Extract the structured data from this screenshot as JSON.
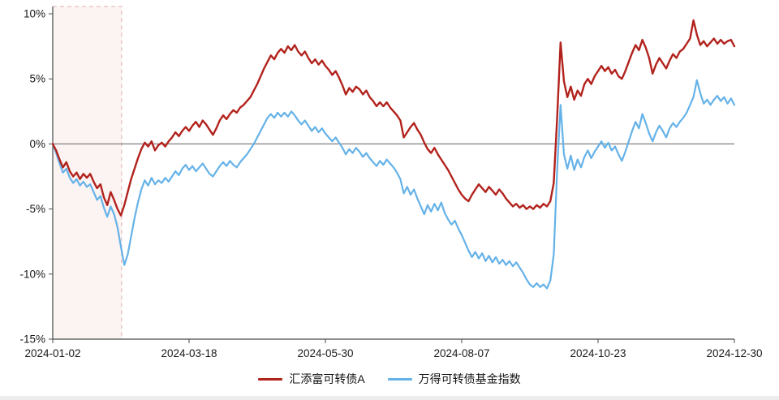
{
  "chart_data": {
    "type": "line",
    "title": "",
    "xlabel": "",
    "ylabel": "",
    "ylim": [
      -15,
      10
    ],
    "y_ticks": [
      10,
      5,
      0,
      -5,
      -10,
      -15
    ],
    "y_tick_labels": [
      "10%",
      "5%",
      "0%",
      "-5%",
      "-10%",
      "-15%"
    ],
    "x_tick_labels": [
      "2024-01-02",
      "2024-03-18",
      "2024-05-30",
      "2024-08-07",
      "2024-10-23",
      "2024-12-30"
    ],
    "grid": false,
    "legend_position": "bottom-center",
    "colors": {
      "axis": "#4a4a4a",
      "zero_line": "#808080",
      "tick_text": "#1a1a1a",
      "highlight_fill": "rgba(217,83,79,0.07)",
      "highlight_border": "#e3b0b0"
    },
    "highlight_region": {
      "t_start": 0.0,
      "t_end": 0.101,
      "style": "dashed"
    },
    "series": [
      {
        "name": "汇添富可转债A",
        "color": "#b2221c",
        "width": 2.4,
        "values": [
          0,
          -0.5,
          -1.2,
          -1.8,
          -1.4,
          -2.1,
          -2.5,
          -2.2,
          -2.7,
          -2.3,
          -2.6,
          -2.3,
          -2.9,
          -3.4,
          -3.1,
          -4.1,
          -4.7,
          -3.7,
          -4.3,
          -5,
          -5.5,
          -4.7,
          -3.7,
          -2.7,
          -1.9,
          -1.1,
          -0.4,
          0.1,
          -0.2,
          0.2,
          -0.5,
          -0.1,
          0.1,
          -0.2,
          0.2,
          0.5,
          0.9,
          0.6,
          1,
          1.3,
          1,
          1.4,
          1.7,
          1.3,
          1.8,
          1.5,
          1.1,
          0.7,
          1.2,
          1.8,
          2.2,
          1.9,
          2.3,
          2.6,
          2.4,
          2.8,
          3,
          3.3,
          3.6,
          4.1,
          4.6,
          5.2,
          5.8,
          6.3,
          6.8,
          6.5,
          7,
          7.3,
          7,
          7.5,
          7.2,
          7.6,
          7.1,
          6.8,
          7.1,
          6.6,
          6.2,
          6.5,
          6.1,
          6.4,
          6,
          5.7,
          5.3,
          5.6,
          5.1,
          4.5,
          3.8,
          4.3,
          4,
          4.4,
          4.2,
          3.8,
          4.1,
          3.6,
          3.3,
          2.9,
          3.2,
          2.9,
          3.2,
          2.8,
          2.5,
          2.2,
          1.8,
          0.5,
          0.9,
          1.3,
          1.6,
          1.1,
          0.7,
          0.1,
          -0.4,
          -0.7,
          -0.3,
          -0.8,
          -1.2,
          -1.6,
          -2,
          -2.5,
          -3,
          -3.5,
          -3.9,
          -4.2,
          -4.4,
          -3.9,
          -3.5,
          -3.1,
          -3.4,
          -3.7,
          -3.3,
          -3.6,
          -3.9,
          -3.5,
          -3.8,
          -4.2,
          -4.5,
          -4.8,
          -4.6,
          -4.9,
          -4.7,
          -5,
          -4.8,
          -5,
          -4.7,
          -4.9,
          -4.6,
          -4.8,
          -4.4,
          -3,
          2,
          7.8,
          4.8,
          3.6,
          4.4,
          3.4,
          4.1,
          3.7,
          4.6,
          5,
          4.6,
          5.2,
          5.6,
          6,
          5.6,
          5.9,
          5.4,
          5.7,
          5.2,
          5,
          5.6,
          6.3,
          7,
          7.6,
          7.2,
          8,
          7.4,
          6.6,
          5.4,
          6.1,
          6.6,
          6.2,
          5.8,
          6.4,
          6.9,
          6.6,
          7.1,
          7.3,
          7.7,
          8.1,
          9.5,
          8.4,
          7.6,
          7.9,
          7.5,
          7.8,
          8.1,
          7.7,
          8,
          7.7,
          7.9,
          8,
          7.5
        ]
      },
      {
        "name": "万得可转债基金指数",
        "color": "#65b2e8",
        "width": 2.2,
        "values": [
          0,
          -0.7,
          -1.5,
          -2.2,
          -1.9,
          -2.6,
          -3,
          -2.7,
          -3.2,
          -2.9,
          -3.3,
          -3.1,
          -3.7,
          -4.3,
          -4,
          -4.9,
          -5.6,
          -4.8,
          -5.4,
          -6.4,
          -7.9,
          -9.3,
          -8.5,
          -7.1,
          -5.7,
          -4.5,
          -3.5,
          -2.8,
          -3.2,
          -2.6,
          -3.1,
          -2.8,
          -3,
          -2.6,
          -2.9,
          -2.5,
          -2.1,
          -2.4,
          -1.9,
          -1.6,
          -2,
          -1.7,
          -2.1,
          -1.8,
          -1.5,
          -1.9,
          -2.3,
          -2.5,
          -2.1,
          -1.7,
          -1.4,
          -1.7,
          -1.3,
          -1.6,
          -1.8,
          -1.4,
          -1.1,
          -0.8,
          -0.4,
          0,
          0.5,
          1,
          1.5,
          2,
          2.3,
          2,
          2.4,
          2.1,
          2.4,
          2.1,
          2.5,
          2.2,
          1.8,
          1.5,
          1.8,
          1.4,
          1,
          1.3,
          0.9,
          1.2,
          0.8,
          0.5,
          0.2,
          0.5,
          0.1,
          -0.3,
          -0.8,
          -0.4,
          -0.7,
          -0.3,
          -0.6,
          -1,
          -0.7,
          -1.1,
          -1.4,
          -1.7,
          -1.3,
          -1.6,
          -1.2,
          -1.5,
          -1.8,
          -2.2,
          -2.7,
          -3.8,
          -3.3,
          -3.9,
          -3.5,
          -4.2,
          -4.8,
          -5.4,
          -4.7,
          -5.2,
          -4.6,
          -5.1,
          -4.5,
          -5.3,
          -5.8,
          -6.2,
          -5.9,
          -6.5,
          -7,
          -7.6,
          -8.2,
          -8.7,
          -8.3,
          -8.8,
          -8.4,
          -9,
          -8.6,
          -9.1,
          -8.7,
          -9.2,
          -8.9,
          -9.3,
          -9,
          -9.4,
          -9.1,
          -9.5,
          -9.9,
          -10.4,
          -10.8,
          -11,
          -10.7,
          -11,
          -10.8,
          -11.1,
          -10.5,
          -8.5,
          -2,
          3,
          -0.8,
          -1.9,
          -0.9,
          -2,
          -1.2,
          -1.8,
          -1,
          -0.5,
          -1.1,
          -0.6,
          -0.2,
          0.2,
          -0.3,
          0.1,
          -0.5,
          -0.2,
          -0.8,
          -1.3,
          -0.6,
          0.2,
          1,
          1.7,
          1.2,
          2.3,
          1.6,
          0.8,
          0.2,
          0.9,
          1.4,
          1,
          0.5,
          1.2,
          1.6,
          1.3,
          1.7,
          2,
          2.4,
          3,
          3.6,
          4.9,
          3.9,
          3.1,
          3.4,
          3,
          3.4,
          3.7,
          3.3,
          3.6,
          3.1,
          3.5,
          3
        ]
      }
    ]
  }
}
